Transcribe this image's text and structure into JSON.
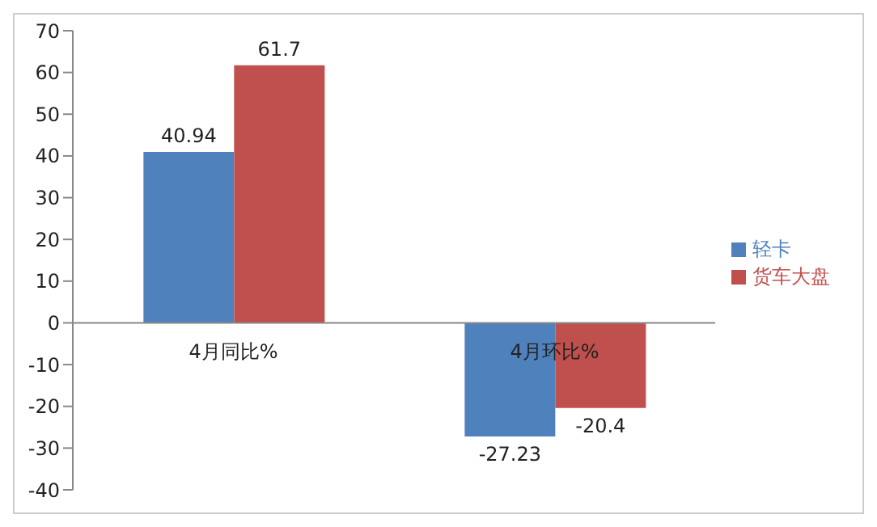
{
  "chart_data": {
    "type": "bar",
    "categories": [
      "4月同比%",
      "4月环比%"
    ],
    "series": [
      {
        "name": "轻卡",
        "color": "#4f81bd",
        "values": [
          40.94,
          -27.23
        ]
      },
      {
        "name": "货车大盘",
        "color": "#c0504d",
        "values": [
          61.7,
          -20.4
        ]
      }
    ],
    "ylim": [
      -40,
      70
    ],
    "yticks": [
      -40,
      -30,
      -20,
      -10,
      0,
      10,
      20,
      30,
      40,
      50,
      60,
      70
    ],
    "legend": "right",
    "data_labels": true
  }
}
